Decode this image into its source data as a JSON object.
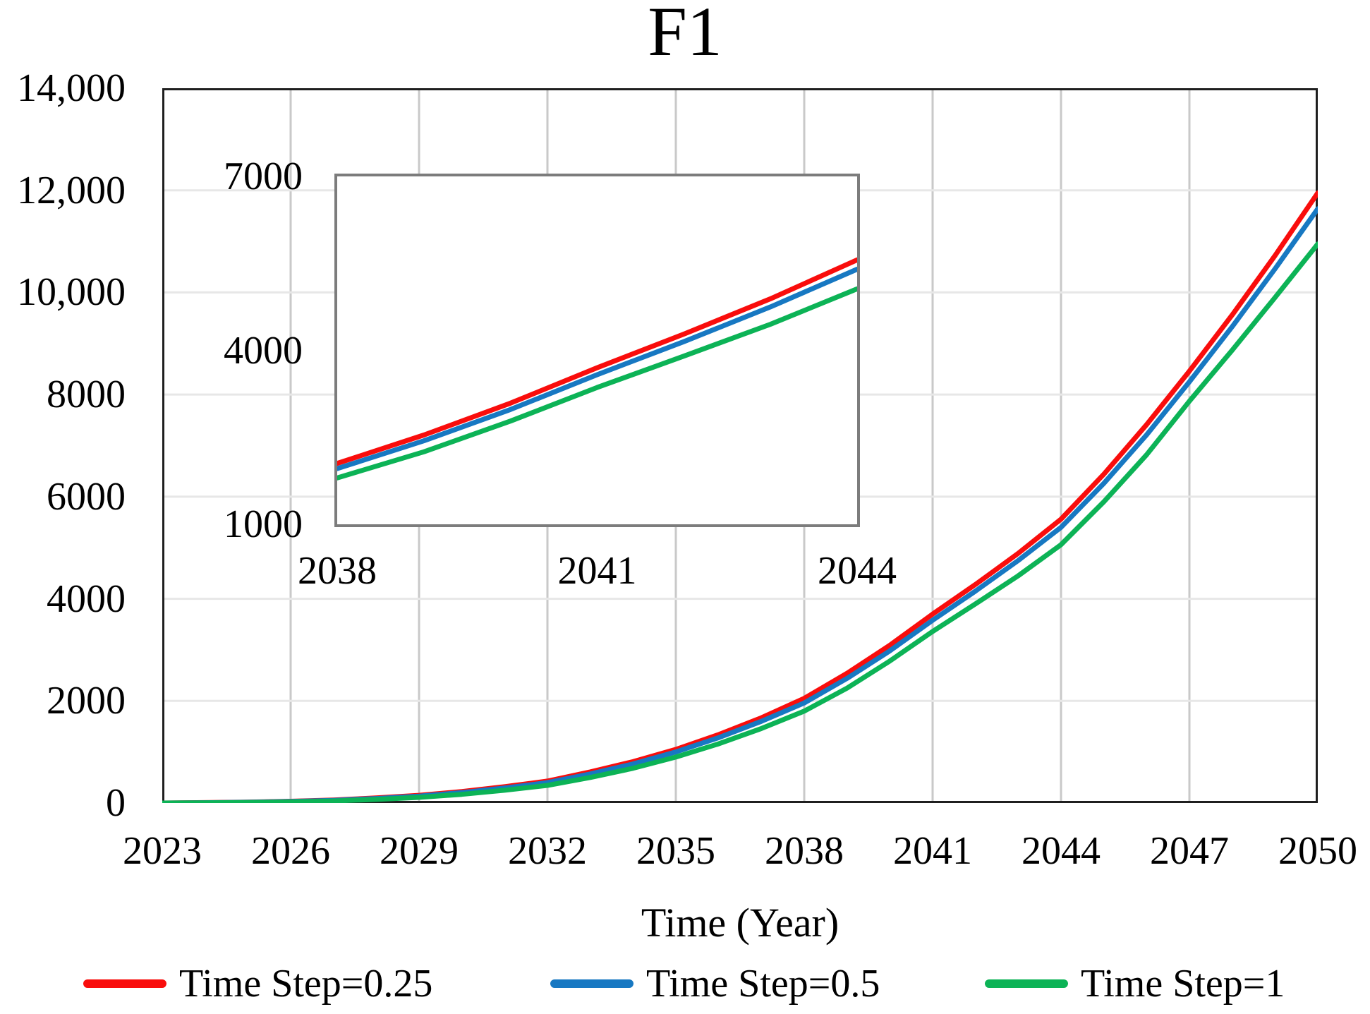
{
  "chart_data": {
    "type": "line",
    "title": "F1",
    "xlabel": "Time (Year)",
    "ylabel": "",
    "xlim": [
      2023,
      2050
    ],
    "ylim": [
      0,
      14000
    ],
    "grid": {
      "vertical": true,
      "horizontal": true,
      "v_color": "#c9c9c9",
      "h_color": "#e7e7e7"
    },
    "border_color": "#1f1f1f",
    "legend_position": "bottom",
    "x_ticks": {
      "values": [
        2023,
        2026,
        2029,
        2032,
        2035,
        2038,
        2041,
        2044,
        2047,
        2050
      ],
      "labels": [
        "2023",
        "2026",
        "2029",
        "2032",
        "2035",
        "2038",
        "2041",
        "2044",
        "2047",
        "2050"
      ]
    },
    "y_ticks": {
      "values": [
        0,
        2000,
        4000,
        6000,
        8000,
        10000,
        12000,
        14000
      ],
      "labels": [
        "0",
        "2000",
        "4000",
        "6000",
        "8000",
        "10,000",
        "12,000",
        "14,000"
      ]
    },
    "x": [
      2023,
      2024,
      2025,
      2026,
      2027,
      2028,
      2029,
      2030,
      2031,
      2032,
      2033,
      2034,
      2035,
      2036,
      2037,
      2038,
      2039,
      2040,
      2041,
      2042,
      2043,
      2044,
      2045,
      2046,
      2047,
      2048,
      2049,
      2050
    ],
    "series": [
      {
        "name": "Time Step=0.25",
        "color": "#f90d0c",
        "values": [
          0,
          8,
          18,
          35,
          60,
          100,
          150,
          225,
          320,
          430,
          610,
          810,
          1050,
          1340,
          1670,
          2050,
          2540,
          3090,
          3700,
          4280,
          4890,
          5560,
          6440,
          7410,
          8460,
          9560,
          10720,
          11950
        ]
      },
      {
        "name": "Time Step=0.5",
        "color": "#1778c2",
        "values": [
          0,
          6,
          15,
          30,
          52,
          88,
          135,
          205,
          295,
          400,
          570,
          765,
          1000,
          1280,
          1600,
          1960,
          2440,
          2980,
          3580,
          4150,
          4750,
          5400,
          6260,
          7210,
          8250,
          9330,
          10460,
          11640
        ]
      },
      {
        "name": "Time Step=1",
        "color": "#0cb356",
        "values": [
          0,
          4,
          10,
          22,
          40,
          70,
          110,
          170,
          250,
          345,
          500,
          680,
          900,
          1160,
          1460,
          1800,
          2250,
          2780,
          3360,
          3900,
          4450,
          5060,
          5900,
          6820,
          7870,
          8870,
          9900,
          10950
        ]
      }
    ],
    "inset": {
      "xlim": [
        2038,
        2044
      ],
      "ylim": [
        1000,
        7000
      ],
      "border_color": "#7c7c7c",
      "x_ticks": {
        "values": [
          2038,
          2041,
          2044
        ],
        "labels": [
          "2038",
          "2041",
          "2044"
        ]
      },
      "y_ticks": {
        "values": [
          1000,
          4000,
          7000
        ],
        "labels": [
          "1000",
          "4000",
          "7000"
        ]
      }
    }
  }
}
